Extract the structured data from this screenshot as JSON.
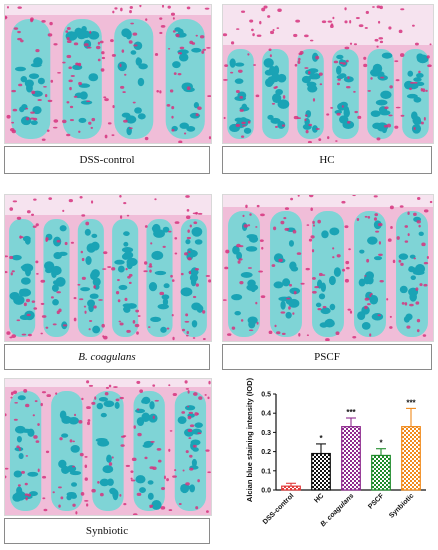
{
  "panels": [
    {
      "id": "dss",
      "caption": "DSS-control",
      "italic": false
    },
    {
      "id": "hc",
      "caption": "HC",
      "italic": false
    },
    {
      "id": "bcoag",
      "caption": "B. coagulans",
      "italic": true
    },
    {
      "id": "pscf",
      "caption": "PSCF",
      "italic": false
    },
    {
      "id": "syn",
      "caption": "Synbiotic",
      "italic": false
    }
  ],
  "colors": {
    "tissue_bg": "#f6e3ef",
    "nuclei": "#d6337e",
    "goblet": "#1aa3b5",
    "goblet_light": "#7fd4d6",
    "mucosa_pink": "#e88fbc"
  },
  "chart_data": {
    "type": "bar",
    "ylabel": "Alcian blue staining intensity (IOD)",
    "ylim": [
      0,
      0.5
    ],
    "yticks": [
      "0.0",
      "0.1",
      "0.2",
      "0.3",
      "0.4",
      "0.5"
    ],
    "categories": [
      "DSS-control",
      "HC",
      "B. coagulans",
      "PSCF",
      "Synbiotic"
    ],
    "category_italic": [
      false,
      false,
      true,
      false,
      false
    ],
    "values": [
      0.02,
      0.19,
      0.33,
      0.18,
      0.33
    ],
    "errors": [
      0.015,
      0.05,
      0.045,
      0.035,
      0.095
    ],
    "significance": [
      "",
      "*",
      "***",
      "*",
      "***"
    ],
    "bar_colors": [
      "#e23b3b",
      "#111111",
      "#8e2a8e",
      "#1e8a2a",
      "#f08a1c"
    ],
    "grid": false
  }
}
